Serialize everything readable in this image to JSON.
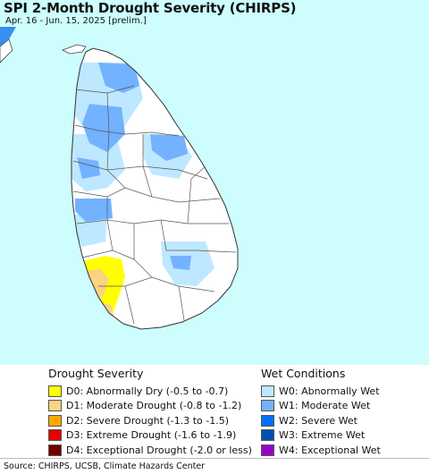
{
  "map": {
    "title": "SPI 2-Month Drought Severity (CHIRPS)",
    "subtitle": "Apr. 16 - Jun. 15, 2025 [prelim.]",
    "colors": {
      "ocean": "#cdfdfd",
      "land": "#ffffff",
      "border": "#444444",
      "india_wet": "#3a8ef0"
    }
  },
  "legend": {
    "drought": {
      "heading": "Drought Severity",
      "items": [
        {
          "label": "D0: Abnormally Dry (-0.5 to -0.7)",
          "color": "#ffff00"
        },
        {
          "label": "D1: Moderate Drought (-0.8 to -1.2)",
          "color": "#fcd37f"
        },
        {
          "label": "D2: Severe Drought (-1.3 to -1.5)",
          "color": "#ffaa00"
        },
        {
          "label": "D3: Extreme Drought (-1.6 to -1.9)",
          "color": "#e60000"
        },
        {
          "label": "D4: Exceptional Drought (-2.0 or less)",
          "color": "#730000"
        }
      ]
    },
    "wet": {
      "heading": "Wet Conditions",
      "items": [
        {
          "label": "W0: Abnormally Wet",
          "color": "#bee8ff"
        },
        {
          "label": "W1: Moderate Wet",
          "color": "#73b2ff"
        },
        {
          "label": "W2: Severe Wet",
          "color": "#0070ff"
        },
        {
          "label": "W3: Extreme Wet",
          "color": "#0050b4"
        },
        {
          "label": "W4: Exceptional Wet",
          "color": "#9900cc"
        }
      ]
    }
  },
  "footer": {
    "source": "Source: CHIRPS, UCSB, Climate Hazards Center"
  }
}
